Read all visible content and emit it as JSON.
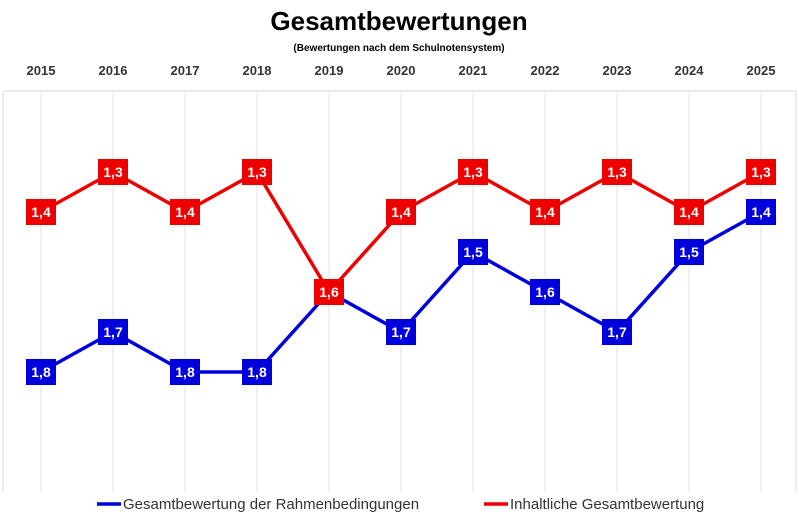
{
  "chart_data": {
    "type": "line",
    "title": "Gesamtbewertungen",
    "subtitle": "(Bewertungen nach dem Schulnotensystem)",
    "categories": [
      "2015",
      "2016",
      "2017",
      "2018",
      "2019",
      "2020",
      "2021",
      "2022",
      "2023",
      "2024",
      "2025"
    ],
    "xaxis_position": "top",
    "ylim": [
      2.0,
      1.0
    ],
    "y_inverted": true,
    "grid": "vertical",
    "legend_position": "bottom",
    "series": [
      {
        "name": "Gesamtbewertung der Rahmenbedingungen",
        "color": "#0000dd",
        "values": [
          1.8,
          1.7,
          1.8,
          1.8,
          1.6,
          1.7,
          1.5,
          1.6,
          1.7,
          1.5,
          1.4
        ],
        "labels": [
          "1,8",
          "1,7",
          "1,8",
          "1,8",
          "1,6",
          "1,7",
          "1,5",
          "1,6",
          "1,7",
          "1,5",
          "1,4"
        ]
      },
      {
        "name": "Inhaltliche Gesamtbewertung",
        "color": "#ee0000",
        "values": [
          1.4,
          1.3,
          1.4,
          1.3,
          1.6,
          1.4,
          1.3,
          1.4,
          1.3,
          1.4,
          1.3
        ],
        "labels": [
          "1,4",
          "1,3",
          "1,4",
          "1,3",
          "1,6",
          "1,4",
          "1,3",
          "1,4",
          "1,3",
          "1,4",
          "1,3"
        ]
      }
    ]
  }
}
